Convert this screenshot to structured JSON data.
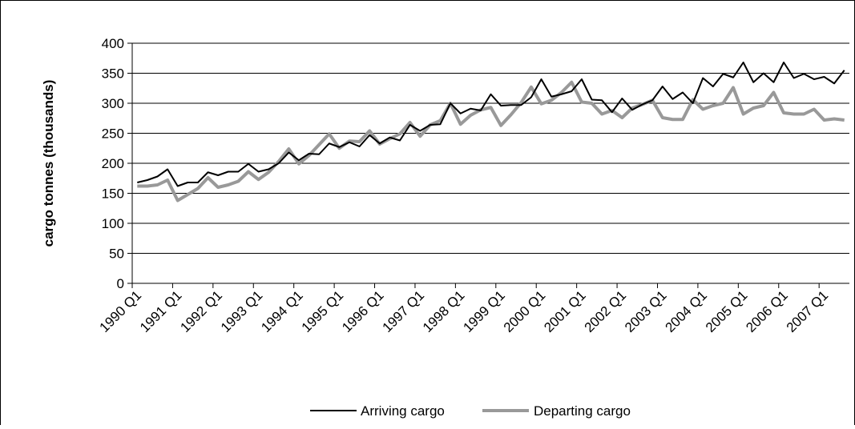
{
  "chart_data": {
    "type": "line",
    "title": "",
    "xlabel": "",
    "ylabel": "cargo tonnes (thousands)",
    "ylim": [
      0,
      400
    ],
    "yticks": [
      "0",
      "50",
      "100",
      "150",
      "200",
      "250",
      "300",
      "350",
      "400"
    ],
    "grid": "horizontal",
    "legend_position": "bottom",
    "x_tick_labels": [
      "1990 Q1",
      "1991 Q1",
      "1992 Q1",
      "1993 Q1",
      "1994 Q1",
      "1995 Q1",
      "1996 Q1",
      "1997 Q1",
      "1998 Q1",
      "1999 Q1",
      "2000 Q1",
      "2001 Q1",
      "2002 Q1",
      "2003 Q1",
      "2004 Q1",
      "2005 Q1",
      "2006 Q1",
      "2007 Q1"
    ],
    "x_start": "1990 Q1",
    "x_end": "2007 Q4",
    "series": [
      {
        "name": "Arriving cargo",
        "color": "#000000",
        "values": [
          168,
          172,
          178,
          190,
          162,
          168,
          168,
          185,
          180,
          186,
          186,
          199,
          186,
          190,
          200,
          218,
          205,
          216,
          215,
          233,
          227,
          235,
          228,
          247,
          233,
          243,
          238,
          264,
          254,
          264,
          265,
          300,
          283,
          291,
          288,
          315,
          296,
          297,
          297,
          310,
          340,
          311,
          315,
          320,
          340,
          306,
          305,
          285,
          308,
          289,
          298,
          305,
          328,
          307,
          318,
          300,
          342,
          328,
          349,
          343,
          368,
          335,
          350,
          335,
          368,
          342,
          349,
          340,
          344,
          333,
          355
        ]
      },
      {
        "name": "Departing cargo",
        "color": "#999999",
        "values": [
          162,
          162,
          164,
          172,
          138,
          148,
          158,
          176,
          160,
          164,
          170,
          186,
          173,
          185,
          203,
          224,
          199,
          213,
          231,
          249,
          225,
          237,
          236,
          254,
          232,
          241,
          249,
          268,
          245,
          264,
          271,
          300,
          265,
          280,
          289,
          293,
          263,
          281,
          301,
          327,
          299,
          305,
          318,
          335,
          302,
          300,
          282,
          288,
          276,
          292,
          298,
          305,
          276,
          273,
          273,
          306,
          290,
          296,
          300,
          326,
          282,
          292,
          296,
          318,
          284,
          282,
          282,
          290,
          272,
          274,
          272
        ]
      }
    ]
  }
}
